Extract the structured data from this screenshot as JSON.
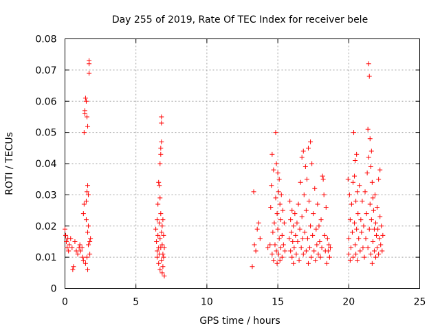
{
  "chart_data": {
    "type": "scatter",
    "title": "Day 255 of 2019, Rate Of TEC Index for receiver bele",
    "xlabel": "GPS time / hours",
    "ylabel": "ROTI / TECUs",
    "xlim": [
      0,
      25
    ],
    "ylim": [
      0,
      0.08
    ],
    "xticks": [
      0,
      5,
      10,
      15,
      20,
      25
    ],
    "xtick_labels": [
      "0",
      "5",
      "10",
      "15",
      "20",
      "25"
    ],
    "yticks": [
      0,
      0.01,
      0.02,
      0.03,
      0.04,
      0.05,
      0.06,
      0.07,
      0.08
    ],
    "ytick_labels": [
      "0",
      "0.01",
      "0.02",
      "0.03",
      "0.04",
      "0.05",
      "0.06",
      "0.07",
      "0.08"
    ],
    "grid": true,
    "marker": "+",
    "marker_color": "#ff0000",
    "series": [
      {
        "name": "ROTI",
        "points": [
          [
            0.0,
            0.019
          ],
          [
            0.05,
            0.017
          ],
          [
            0.1,
            0.015
          ],
          [
            0.15,
            0.013
          ],
          [
            0.2,
            0.016
          ],
          [
            0.25,
            0.012
          ],
          [
            0.3,
            0.014
          ],
          [
            0.4,
            0.016
          ],
          [
            0.5,
            0.013
          ],
          [
            0.55,
            0.006
          ],
          [
            0.6,
            0.007
          ],
          [
            0.7,
            0.015
          ],
          [
            0.8,
            0.012
          ],
          [
            0.9,
            0.011
          ],
          [
            1.0,
            0.013
          ],
          [
            1.05,
            0.014
          ],
          [
            1.1,
            0.012
          ],
          [
            1.2,
            0.013
          ],
          [
            1.25,
            0.01
          ],
          [
            1.3,
            0.009
          ],
          [
            1.3,
            0.024
          ],
          [
            1.35,
            0.027
          ],
          [
            1.35,
            0.05
          ],
          [
            1.4,
            0.056
          ],
          [
            1.4,
            0.057
          ],
          [
            1.45,
            0.061
          ],
          [
            1.45,
            0.008
          ],
          [
            1.5,
            0.06
          ],
          [
            1.5,
            0.028
          ],
          [
            1.5,
            0.022
          ],
          [
            1.55,
            0.055
          ],
          [
            1.55,
            0.031
          ],
          [
            1.55,
            0.01
          ],
          [
            1.6,
            0.033
          ],
          [
            1.6,
            0.052
          ],
          [
            1.6,
            0.018
          ],
          [
            1.6,
            0.006
          ],
          [
            1.65,
            0.03
          ],
          [
            1.65,
            0.014
          ],
          [
            1.65,
            0.02
          ],
          [
            1.7,
            0.069
          ],
          [
            1.7,
            0.073
          ],
          [
            1.7,
            0.072
          ],
          [
            1.75,
            0.015
          ],
          [
            1.75,
            0.011
          ],
          [
            1.8,
            0.016
          ],
          [
            6.4,
            0.019
          ],
          [
            6.45,
            0.015
          ],
          [
            6.5,
            0.012
          ],
          [
            6.5,
            0.022
          ],
          [
            6.5,
            0.01
          ],
          [
            6.55,
            0.027
          ],
          [
            6.55,
            0.017
          ],
          [
            6.6,
            0.034
          ],
          [
            6.6,
            0.013
          ],
          [
            6.6,
            0.008
          ],
          [
            6.65,
            0.033
          ],
          [
            6.65,
            0.021
          ],
          [
            6.65,
            0.011
          ],
          [
            6.7,
            0.04
          ],
          [
            6.7,
            0.029
          ],
          [
            6.7,
            0.016
          ],
          [
            6.7,
            0.006
          ],
          [
            6.75,
            0.043
          ],
          [
            6.75,
            0.045
          ],
          [
            6.75,
            0.024
          ],
          [
            6.75,
            0.013
          ],
          [
            6.8,
            0.053
          ],
          [
            6.8,
            0.055
          ],
          [
            6.8,
            0.047
          ],
          [
            6.8,
            0.018
          ],
          [
            6.8,
            0.009
          ],
          [
            6.85,
            0.02
          ],
          [
            6.85,
            0.014
          ],
          [
            6.85,
            0.005
          ],
          [
            6.9,
            0.022
          ],
          [
            6.9,
            0.011
          ],
          [
            6.9,
            0.007
          ],
          [
            6.95,
            0.017
          ],
          [
            6.95,
            0.01
          ],
          [
            7.0,
            0.013
          ],
          [
            7.0,
            0.004
          ],
          [
            13.2,
            0.007
          ],
          [
            13.3,
            0.031
          ],
          [
            13.35,
            0.014
          ],
          [
            13.45,
            0.012
          ],
          [
            13.55,
            0.019
          ],
          [
            13.65,
            0.021
          ],
          [
            13.75,
            0.016
          ],
          [
            14.3,
            0.013
          ],
          [
            14.45,
            0.014
          ],
          [
            14.5,
            0.026
          ],
          [
            14.55,
            0.033
          ],
          [
            14.6,
            0.043
          ],
          [
            14.6,
            0.011
          ],
          [
            14.65,
            0.018
          ],
          [
            14.7,
            0.038
          ],
          [
            14.7,
            0.009
          ],
          [
            14.75,
            0.021
          ],
          [
            14.8,
            0.014
          ],
          [
            14.85,
            0.05
          ],
          [
            14.85,
            0.029
          ],
          [
            14.9,
            0.04
          ],
          [
            14.9,
            0.012
          ],
          [
            14.95,
            0.024
          ],
          [
            14.95,
            0.008
          ],
          [
            15.0,
            0.037
          ],
          [
            15.0,
            0.019
          ],
          [
            15.05,
            0.031
          ],
          [
            15.05,
            0.011
          ],
          [
            15.1,
            0.035
          ],
          [
            15.1,
            0.016
          ],
          [
            15.15,
            0.027
          ],
          [
            15.15,
            0.009
          ],
          [
            15.2,
            0.022
          ],
          [
            15.2,
            0.013
          ],
          [
            15.25,
            0.03
          ],
          [
            15.3,
            0.017
          ],
          [
            15.3,
            0.01
          ],
          [
            15.35,
            0.025
          ],
          [
            15.4,
            0.014
          ],
          [
            15.45,
            0.021
          ],
          [
            15.5,
            0.012
          ],
          [
            15.8,
            0.016
          ],
          [
            15.85,
            0.028
          ],
          [
            15.9,
            0.022
          ],
          [
            15.9,
            0.012
          ],
          [
            15.95,
            0.018
          ],
          [
            16.0,
            0.025
          ],
          [
            16.0,
            0.01
          ],
          [
            16.05,
            0.015
          ],
          [
            16.1,
            0.02
          ],
          [
            16.1,
            0.008
          ],
          [
            16.15,
            0.013
          ],
          [
            16.2,
            0.024
          ],
          [
            16.25,
            0.017
          ],
          [
            16.3,
            0.011
          ],
          [
            16.35,
            0.021
          ],
          [
            16.4,
            0.015
          ],
          [
            16.45,
            0.027
          ],
          [
            16.5,
            0.009
          ],
          [
            16.55,
            0.019
          ],
          [
            16.6,
            0.034
          ],
          [
            16.65,
            0.013
          ],
          [
            16.7,
            0.042
          ],
          [
            16.7,
            0.023
          ],
          [
            16.75,
            0.016
          ],
          [
            16.8,
            0.044
          ],
          [
            16.8,
            0.011
          ],
          [
            16.85,
            0.03
          ],
          [
            16.9,
            0.018
          ],
          [
            16.95,
            0.039
          ],
          [
            17.0,
            0.012
          ],
          [
            17.0,
            0.025
          ],
          [
            17.05,
            0.035
          ],
          [
            17.1,
            0.016
          ],
          [
            17.15,
            0.045
          ],
          [
            17.15,
            0.008
          ],
          [
            17.2,
            0.028
          ],
          [
            17.25,
            0.013
          ],
          [
            17.3,
            0.047
          ],
          [
            17.3,
            0.02
          ],
          [
            17.35,
            0.01
          ],
          [
            17.4,
            0.04
          ],
          [
            17.45,
            0.017
          ],
          [
            17.5,
            0.024
          ],
          [
            17.55,
            0.012
          ],
          [
            17.6,
            0.032
          ],
          [
            17.65,
            0.009
          ],
          [
            17.7,
            0.019
          ],
          [
            17.75,
            0.014
          ],
          [
            17.8,
            0.027
          ],
          [
            17.85,
            0.011
          ],
          [
            17.9,
            0.02
          ],
          [
            17.95,
            0.015
          ],
          [
            18.0,
            0.01
          ],
          [
            18.05,
            0.022
          ],
          [
            18.1,
            0.013
          ],
          [
            18.15,
            0.036
          ],
          [
            18.2,
            0.035
          ],
          [
            18.25,
            0.03
          ],
          [
            18.3,
            0.017
          ],
          [
            18.35,
            0.012
          ],
          [
            18.4,
            0.026
          ],
          [
            18.45,
            0.008
          ],
          [
            18.5,
            0.016
          ],
          [
            18.55,
            0.012
          ],
          [
            18.6,
            0.014
          ],
          [
            18.65,
            0.01
          ],
          [
            18.7,
            0.013
          ],
          [
            19.95,
            0.035
          ],
          [
            20.0,
            0.016
          ],
          [
            20.0,
            0.011
          ],
          [
            20.05,
            0.03
          ],
          [
            20.1,
            0.022
          ],
          [
            20.1,
            0.009
          ],
          [
            20.15,
            0.013
          ],
          [
            20.2,
            0.027
          ],
          [
            20.25,
            0.018
          ],
          [
            20.3,
            0.034
          ],
          [
            20.3,
            0.01
          ],
          [
            20.35,
            0.05
          ],
          [
            20.4,
            0.036
          ],
          [
            20.4,
            0.021
          ],
          [
            20.45,
            0.041
          ],
          [
            20.45,
            0.014
          ],
          [
            20.5,
            0.028
          ],
          [
            20.5,
            0.011
          ],
          [
            20.55,
            0.043
          ],
          [
            20.55,
            0.019
          ],
          [
            20.6,
            0.031
          ],
          [
            20.6,
            0.009
          ],
          [
            20.65,
            0.024
          ],
          [
            20.7,
            0.016
          ],
          [
            20.75,
            0.033
          ],
          [
            20.8,
            0.012
          ],
          [
            20.85,
            0.022
          ],
          [
            20.9,
            0.018
          ],
          [
            20.95,
            0.028
          ],
          [
            21.0,
            0.013
          ],
          [
            21.05,
            0.02
          ],
          [
            21.1,
            0.01
          ],
          [
            21.15,
            0.031
          ],
          [
            21.2,
            0.016
          ],
          [
            21.25,
            0.024
          ],
          [
            21.3,
            0.037
          ],
          [
            21.35,
            0.051
          ],
          [
            21.35,
            0.013
          ],
          [
            21.4,
            0.072
          ],
          [
            21.4,
            0.042
          ],
          [
            21.45,
            0.068
          ],
          [
            21.45,
            0.019
          ],
          [
            21.5,
            0.048
          ],
          [
            21.5,
            0.027
          ],
          [
            21.55,
            0.039
          ],
          [
            21.55,
            0.011
          ],
          [
            21.6,
            0.044
          ],
          [
            21.6,
            0.022
          ],
          [
            21.65,
            0.034
          ],
          [
            21.65,
            0.008
          ],
          [
            21.7,
            0.029
          ],
          [
            21.7,
            0.015
          ],
          [
            21.75,
            0.025
          ],
          [
            21.8,
            0.019
          ],
          [
            21.8,
            0.012
          ],
          [
            21.85,
            0.03
          ],
          [
            21.9,
            0.021
          ],
          [
            21.9,
            0.01
          ],
          [
            21.95,
            0.017
          ],
          [
            22.0,
            0.026
          ],
          [
            22.0,
            0.013
          ],
          [
            22.05,
            0.019
          ],
          [
            22.1,
            0.035
          ],
          [
            22.1,
            0.011
          ],
          [
            22.15,
            0.016
          ],
          [
            22.2,
            0.038
          ],
          [
            22.2,
            0.023
          ],
          [
            22.25,
            0.014
          ],
          [
            22.3,
            0.02
          ],
          [
            22.35,
            0.012
          ],
          [
            22.4,
            0.017
          ]
        ]
      }
    ]
  }
}
